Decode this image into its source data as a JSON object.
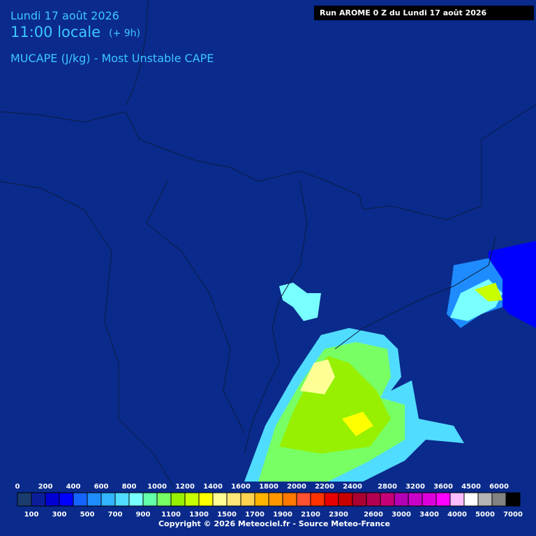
{
  "header": {
    "date": "Lundi 17 août 2026",
    "time": "11:00 locale",
    "offset": "(+ 9h)",
    "parameter": "MUCAPE (J/kg) - Most Unstable CAPE",
    "run": "Run AROME 0 Z du Lundi 17 août 2026"
  },
  "legend": {
    "items": [
      {
        "value": 0,
        "color": "#1a3c6e"
      },
      {
        "value": 100,
        "color": "#0a1e9a"
      },
      {
        "value": 200,
        "color": "#0000d2"
      },
      {
        "value": 300,
        "color": "#0000ff"
      },
      {
        "value": 400,
        "color": "#1464ff"
      },
      {
        "value": 500,
        "color": "#1e8cff"
      },
      {
        "value": 600,
        "color": "#32b4ff"
      },
      {
        "value": 700,
        "color": "#50dcff"
      },
      {
        "value": 800,
        "color": "#78ffff"
      },
      {
        "value": 900,
        "color": "#64ffaa"
      },
      {
        "value": 1000,
        "color": "#78ff64"
      },
      {
        "value": 1100,
        "color": "#96f000"
      },
      {
        "value": 1200,
        "color": "#c8ff00"
      },
      {
        "value": 1300,
        "color": "#ffff00"
      },
      {
        "value": 1400,
        "color": "#ffff96"
      },
      {
        "value": 1500,
        "color": "#ffe678"
      },
      {
        "value": 1600,
        "color": "#ffd250"
      },
      {
        "value": 1700,
        "color": "#ffb400"
      },
      {
        "value": 1800,
        "color": "#ff9600"
      },
      {
        "value": 1900,
        "color": "#ff7800"
      },
      {
        "value": 2000,
        "color": "#ff5032"
      },
      {
        "value": 2100,
        "color": "#ff3200"
      },
      {
        "value": 2200,
        "color": "#e60000"
      },
      {
        "value": 2300,
        "color": "#c80000"
      },
      {
        "value": 2400,
        "color": "#aa0032"
      },
      {
        "value": 2600,
        "color": "#b40050"
      },
      {
        "value": 2800,
        "color": "#c80078"
      },
      {
        "value": 3000,
        "color": "#b400b4"
      },
      {
        "value": 3200,
        "color": "#c800c8"
      },
      {
        "value": 3400,
        "color": "#dc00dc"
      },
      {
        "value": 3600,
        "color": "#ff00ff"
      },
      {
        "value": 4000,
        "color": "#ffbcff"
      },
      {
        "value": 4500,
        "color": "#ffffff"
      },
      {
        "value": 5000,
        "color": "#b4b4b4"
      },
      {
        "value": 6000,
        "color": "#828282"
      },
      {
        "value": 7000,
        "color": "#000000"
      }
    ]
  },
  "copyright": "Copyright © 2026 Meteociel.fr - Source Meteo-France"
}
